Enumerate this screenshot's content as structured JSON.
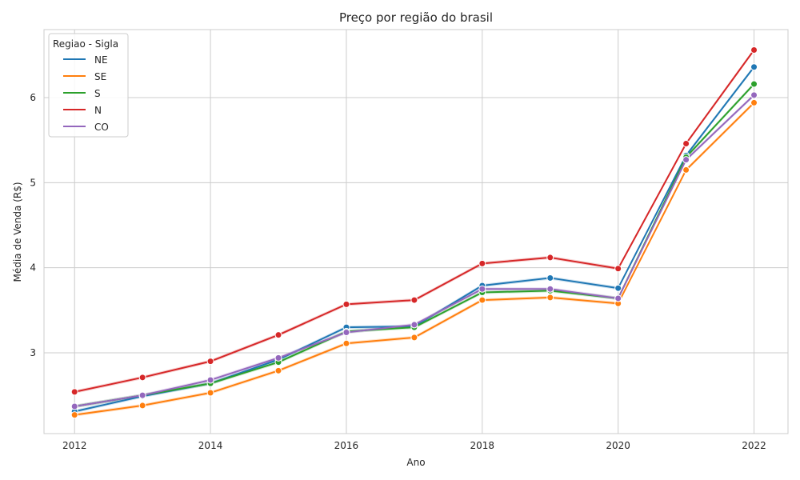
{
  "chart_data": {
    "type": "line",
    "title": "Preço por região do brasil",
    "xlabel": "Ano",
    "ylabel": "Média de Venda (R$)",
    "x": [
      2012,
      2013,
      2014,
      2015,
      2016,
      2017,
      2018,
      2019,
      2020,
      2021,
      2022
    ],
    "xticks": [
      2012,
      2014,
      2016,
      2018,
      2020,
      2022
    ],
    "yticks": [
      3,
      4,
      5,
      6
    ],
    "xlim": [
      2011.55,
      2022.5
    ],
    "ylim": [
      2.05,
      6.8
    ],
    "grid": true,
    "legend": {
      "title": "Regiao - Sigla",
      "position": "top-left"
    },
    "series": [
      {
        "name": "NE",
        "color": "#1f77b4",
        "values": [
          2.31,
          2.49,
          2.64,
          2.92,
          3.3,
          3.31,
          3.79,
          3.88,
          3.76,
          5.32,
          6.36
        ]
      },
      {
        "name": "SE",
        "color": "#ff7f0e",
        "values": [
          2.27,
          2.38,
          2.53,
          2.79,
          3.11,
          3.18,
          3.62,
          3.65,
          3.58,
          5.15,
          5.94
        ]
      },
      {
        "name": "S",
        "color": "#2ca02c",
        "values": [
          2.37,
          2.5,
          2.64,
          2.89,
          3.25,
          3.3,
          3.71,
          3.73,
          3.64,
          5.3,
          6.16
        ]
      },
      {
        "name": "N",
        "color": "#d62728",
        "values": [
          2.54,
          2.71,
          2.9,
          3.21,
          3.57,
          3.62,
          4.05,
          4.12,
          3.99,
          5.46,
          6.56
        ]
      },
      {
        "name": "CO",
        "color": "#9467bd",
        "values": [
          2.37,
          2.5,
          2.68,
          2.94,
          3.24,
          3.33,
          3.75,
          3.75,
          3.64,
          5.27,
          6.03
        ]
      }
    ]
  }
}
